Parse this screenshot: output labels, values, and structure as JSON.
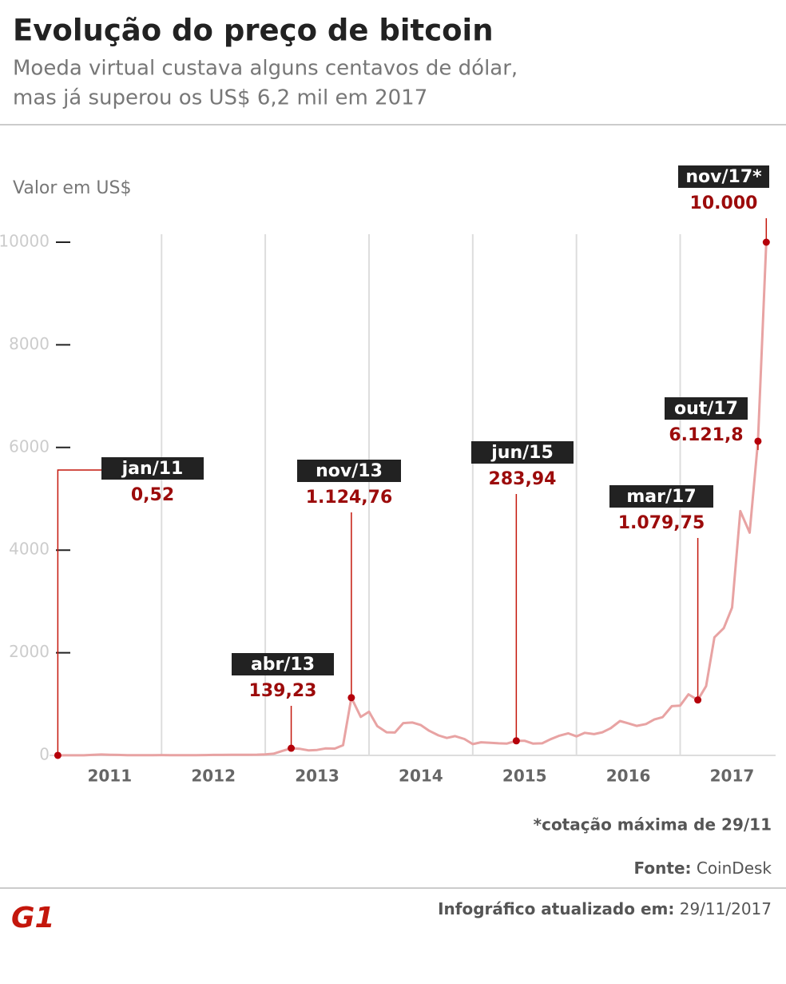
{
  "chart_data": {
    "type": "line",
    "title": "Evolução do preço de bitcoin",
    "subtitle": [
      "Moeda virtual custava alguns centavos de dólar,",
      "mas já superou os US$ 6,2 mil em 2017"
    ],
    "y_label": "Valor em US$",
    "x": [
      2011,
      2011.08,
      2011.17,
      2011.25,
      2011.33,
      2011.42,
      2011.5,
      2011.58,
      2011.67,
      2011.75,
      2011.83,
      2011.92,
      2012,
      2012.08,
      2012.17,
      2012.25,
      2012.33,
      2012.42,
      2012.5,
      2012.58,
      2012.67,
      2012.75,
      2012.83,
      2012.92,
      2013,
      2013.08,
      2013.17,
      2013.25,
      2013.33,
      2013.42,
      2013.5,
      2013.58,
      2013.67,
      2013.75,
      2013.83,
      2013.92,
      2014,
      2014.08,
      2014.17,
      2014.25,
      2014.33,
      2014.42,
      2014.5,
      2014.58,
      2014.67,
      2014.75,
      2014.83,
      2014.92,
      2015,
      2015.08,
      2015.17,
      2015.25,
      2015.33,
      2015.42,
      2015.5,
      2015.58,
      2015.67,
      2015.75,
      2015.83,
      2015.92,
      2016,
      2016.08,
      2016.17,
      2016.25,
      2016.33,
      2016.42,
      2016.5,
      2016.58,
      2016.67,
      2016.75,
      2016.83,
      2016.92,
      2017,
      2017.08,
      2017.17,
      2017.25,
      2017.33,
      2017.42,
      2017.5,
      2017.58,
      2017.67,
      2017.75,
      2017.83
    ],
    "series": [
      {
        "name": "Bitcoin",
        "color": "#e8a3a3",
        "values": [
          0.52,
          1,
          0.9,
          1.2,
          8.7,
          17,
          13,
          9,
          5,
          3.2,
          3,
          4.7,
          6,
          5,
          5,
          5,
          5,
          6.7,
          9,
          10,
          12,
          11,
          12,
          13.5,
          20,
          33,
          90,
          139.23,
          129,
          97,
          106,
          135,
          133,
          200,
          1124.76,
          750,
          850,
          570,
          450,
          445,
          630,
          640,
          590,
          480,
          390,
          340,
          375,
          320,
          220,
          255,
          245,
          235,
          230,
          283.94,
          285,
          230,
          235,
          315,
          380,
          430,
          370,
          440,
          415,
          450,
          530,
          670,
          625,
          575,
          610,
          700,
          745,
          960,
          970,
          1190,
          1079.75,
          1350,
          2300,
          2480,
          2880,
          4760,
          4340,
          6121.8,
          10000
        ]
      }
    ],
    "xlim": [
      2010.92,
      2017.92
    ],
    "ylim": [
      0,
      10000
    ],
    "yticks": [
      0,
      2000,
      4000,
      6000,
      8000,
      10000
    ],
    "xticks": [
      {
        "value": 2011.5,
        "label": "2011"
      },
      {
        "value": 2012.5,
        "label": "2012"
      },
      {
        "value": 2013.5,
        "label": "2013"
      },
      {
        "value": 2014.5,
        "label": "2014"
      },
      {
        "value": 2015.5,
        "label": "2015"
      },
      {
        "value": 2016.5,
        "label": "2016"
      },
      {
        "value": 2017.5,
        "label": "2017"
      }
    ],
    "xgrid": [
      2012,
      2013,
      2014,
      2015,
      2016,
      2017
    ],
    "annotations": [
      {
        "label": "jan/11",
        "x": 2011,
        "value": 0.52,
        "value_label": "0,52"
      },
      {
        "label": "abr/13",
        "x": 2013.25,
        "value": 139.23,
        "value_label": "139,23"
      },
      {
        "label": "nov/13",
        "x": 2013.83,
        "value": 1124.76,
        "value_label": "1.124,76"
      },
      {
        "label": "jun/15",
        "x": 2015.42,
        "value": 283.94,
        "value_label": "283,94"
      },
      {
        "label": "mar/17",
        "x": 2017.17,
        "value": 1079.75,
        "value_label": "1.079,75"
      },
      {
        "label": "out/17",
        "x": 2017.75,
        "value": 6121.8,
        "value_label": "6.121,8"
      },
      {
        "label": "nov/17*",
        "x": 2017.83,
        "value": 10000,
        "value_label": "10.000"
      }
    ],
    "footnote": "*cotação máxima de 29/11",
    "source_label": "Fonte:",
    "source": "CoinDesk",
    "logo": "G1",
    "updated_label": "Infográfico atualizado em:",
    "updated": "29/11/2017"
  }
}
